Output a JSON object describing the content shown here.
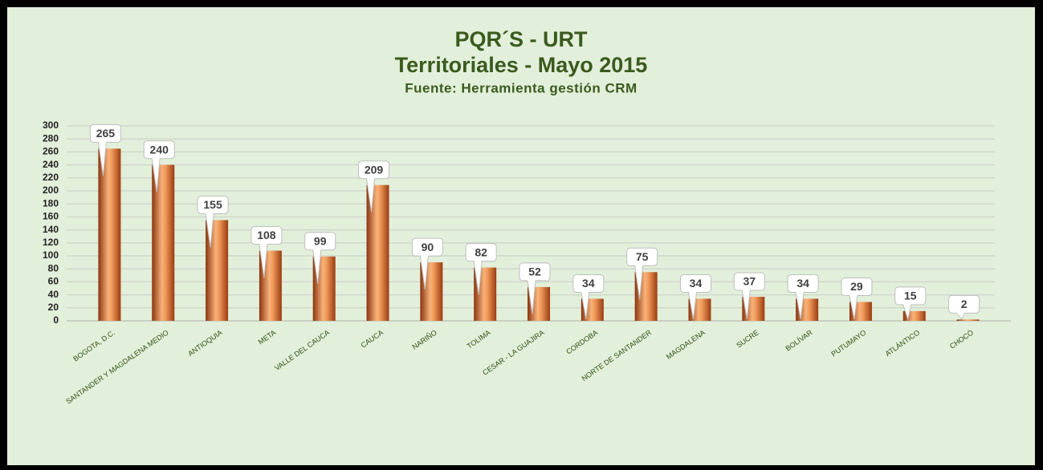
{
  "chart_data": {
    "type": "bar",
    "title": "PQR´S - URT",
    "subtitle": "Territoriales -  Mayo 2015",
    "note": "Fuente: Herramienta gestión CRM",
    "categories": [
      "BOGOTA, D.C.",
      "SANTANDER Y MAGDALENA MEDIO",
      "ANTIOQUIA",
      "META",
      "VALLE DEL CAUCA",
      "CAUCA",
      "NARIÑO",
      "TOLIMA",
      "CESAR - LA GUAJIRA",
      "CORDOBA",
      "NORTE DE SANTANDER",
      "MAGDALENA",
      "SUCRE",
      "BOLÍVAR",
      "PUTUMAYO",
      "ATLÁNTICO",
      "CHOCÓ"
    ],
    "values": [
      265,
      240,
      155,
      108,
      99,
      209,
      90,
      82,
      52,
      34,
      75,
      34,
      37,
      34,
      29,
      15,
      2
    ],
    "color": "#e07b39",
    "ylim": [
      0,
      300
    ],
    "yticks": [
      0,
      20,
      40,
      60,
      80,
      100,
      120,
      140,
      160,
      180,
      200,
      220,
      240,
      260,
      280,
      300
    ],
    "grid": true
  }
}
